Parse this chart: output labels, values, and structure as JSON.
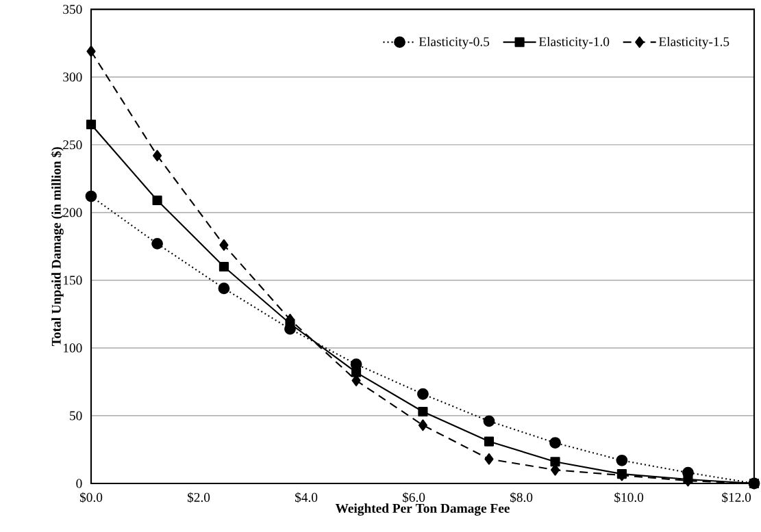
{
  "chart_data": {
    "type": "line",
    "xlabel": "Weighted Per Ton Damage Fee",
    "ylabel": "Total Unpaid Damage (in million $)",
    "x": [
      0,
      1.23,
      2.47,
      3.7,
      4.93,
      6.17,
      7.4,
      8.63,
      9.87,
      11.1,
      12.33
    ],
    "series": [
      {
        "name": "Elasticity-0.5",
        "color": "#000000",
        "marker": "circle",
        "line_style": "dotted",
        "values": [
          212,
          177,
          144,
          114,
          88,
          66,
          46,
          30,
          17,
          8,
          0
        ]
      },
      {
        "name": "Elasticity-1.0",
        "color": "#000000",
        "marker": "square",
        "line_style": "solid",
        "values": [
          265,
          209,
          160,
          118,
          82,
          53,
          31,
          16,
          7,
          3,
          0
        ]
      },
      {
        "name": "Elasticity-1.5",
        "color": "#000000",
        "marker": "diamond",
        "line_style": "dashed",
        "values": [
          319,
          242,
          176,
          121,
          76,
          43,
          18,
          10,
          6,
          2,
          0
        ]
      }
    ],
    "xlim": [
      0,
      12.33
    ],
    "xticks": [
      {
        "value": 0,
        "label": "$0.0"
      },
      {
        "value": 2,
        "label": "$2.0"
      },
      {
        "value": 4,
        "label": "$4.0"
      },
      {
        "value": 6,
        "label": "$6.0"
      },
      {
        "value": 8,
        "label": "$8.0"
      },
      {
        "value": 10,
        "label": "$10.0"
      },
      {
        "value": 12,
        "label": "$12.0"
      }
    ],
    "ylim": [
      0,
      350
    ],
    "yticks": [
      0,
      50,
      100,
      150,
      200,
      250,
      300,
      350
    ],
    "grid": "y",
    "legend": "top right"
  }
}
